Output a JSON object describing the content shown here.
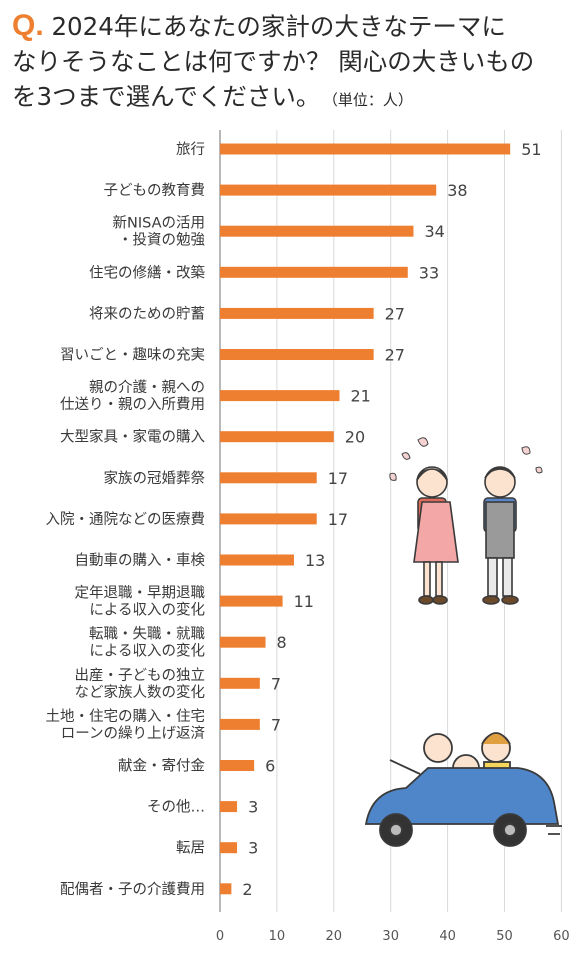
{
  "question": {
    "marker": "Q.",
    "lines": [
      "2024年にあなたの家計の大きなテーマに",
      "なりそうなことは何ですか？ 関心の大きいもの",
      "を3つまで選んでください。"
    ],
    "unit": "（単位：人）"
  },
  "colors": {
    "bar": "#ee7f30",
    "accent": "#ee7f30",
    "grid": "#d9d9d9",
    "text": "#3a3a3a"
  },
  "chart_data": {
    "type": "bar",
    "orientation": "horizontal",
    "categories": [
      [
        "旅行"
      ],
      [
        "子どもの教育費"
      ],
      [
        "新NISAの活用",
        "・投資の勉強"
      ],
      [
        "住宅の修繕・改築"
      ],
      [
        "将来のための貯蓄"
      ],
      [
        "習いごと・趣味の充実"
      ],
      [
        "親の介護・親への",
        "仕送り・親の入所費用"
      ],
      [
        "大型家具・家電の購入"
      ],
      [
        "家族の冠婚葬祭"
      ],
      [
        "入院・通院などの医療費"
      ],
      [
        "自動車の購入・車検"
      ],
      [
        "定年退職・早期退職",
        "による収入の変化"
      ],
      [
        "転職・失職・就職",
        "による収入の変化"
      ],
      [
        "出産・子どもの独立",
        "など家族人数の変化"
      ],
      [
        "土地・住宅の購入・住宅",
        "ローンの繰り上げ返済"
      ],
      [
        "献金・寄付金"
      ],
      [
        "その他…"
      ],
      [
        "転居"
      ],
      [
        "配偶者・子の介護費用"
      ]
    ],
    "values": [
      51,
      38,
      34,
      33,
      27,
      27,
      21,
      20,
      17,
      17,
      13,
      11,
      8,
      7,
      7,
      6,
      3,
      3,
      2
    ],
    "xlim": [
      0,
      60
    ],
    "xticks": [
      "0",
      "10",
      "20",
      "30",
      "40",
      "50",
      "60"
    ],
    "grid": true,
    "data_labels": true
  }
}
